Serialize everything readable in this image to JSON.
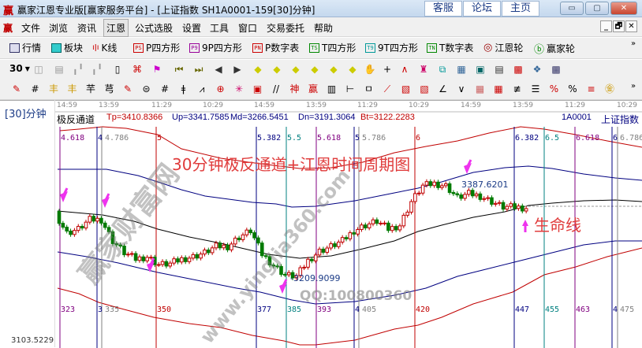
{
  "window": {
    "logo": "赢",
    "title": "赢家江恩专业版[赢家服务平台] - [上证指数  SH1A0001-159[30]分钟]",
    "links": [
      "客服",
      "论坛",
      "主页"
    ],
    "controls": [
      "minimize",
      "maximize",
      "close"
    ]
  },
  "menu": {
    "logo": "赢",
    "items": [
      "文件",
      "浏览",
      "资讯",
      "江恩",
      "公式选股",
      "设置",
      "工具",
      "窗口",
      "交易委托",
      "帮助"
    ],
    "active": "江恩",
    "mdi": [
      "_",
      "🗗",
      "✕"
    ]
  },
  "toolbar1": {
    "items": [
      {
        "label": "行情",
        "icon": "grid-table-icon"
      },
      {
        "label": "板块",
        "icon": "blocks-icon"
      },
      {
        "label": "K线",
        "icon": "candlestick-icon"
      },
      {
        "label": "P四方形",
        "icon": "PS"
      },
      {
        "label": "9P四方形",
        "icon": "P9"
      },
      {
        "label": "P数字表",
        "icon": "PN"
      },
      {
        "label": "T四方形",
        "icon": "TS"
      },
      {
        "label": "9T四方形",
        "icon": "T9"
      },
      {
        "label": "T数字表",
        "icon": "TN"
      },
      {
        "label": "江恩轮",
        "icon": "target-wheel-icon"
      },
      {
        "label": "赢家轮",
        "icon": "big-wheel-icon"
      }
    ],
    "more": "»"
  },
  "toolbar2": {
    "period": "30",
    "more": "»"
  },
  "chart": {
    "period_label": "[30]分钟",
    "low_price": "3103.5229",
    "time_labels": [
      "14:59",
      "13:59",
      "11:29",
      "10:29",
      "14:59",
      "13:59",
      "11:29",
      "10:29",
      "14:59",
      "13:59",
      "11:29",
      "10:29"
    ],
    "indicator": {
      "name": "极反通道",
      "tp": "Tp=3410.8366",
      "up": "Up=3341.7585",
      "md": "Md=3266.5451",
      "dn": "Dn=3191.3064",
      "bt": "Bt=3122.2283"
    },
    "symbol": "1A0001",
    "symbol_name": "上证指数",
    "cycles": [
      {
        "top": "4.618",
        "bottom": "323",
        "color": "#800080"
      },
      {
        "top": "4",
        "bottom": "3",
        "color": "#000080"
      },
      {
        "top": "4.786",
        "bottom": "335",
        "color": "#808080"
      },
      {
        "top": "5",
        "bottom": "350",
        "color": "#c00000"
      },
      {
        "top": "5.382",
        "bottom": "377",
        "color": "#000080"
      },
      {
        "top": "5.5",
        "bottom": "385",
        "color": "#008080"
      },
      {
        "top": "5.618",
        "bottom": "393",
        "color": "#800080"
      },
      {
        "top": "5",
        "bottom": "4",
        "color": "#000080"
      },
      {
        "top": "5.786",
        "bottom": "405",
        "color": "#808080"
      },
      {
        "top": "6",
        "bottom": "420",
        "color": "#c00000"
      },
      {
        "top": "6.382",
        "bottom": "447",
        "color": "#000080"
      },
      {
        "top": "6.5",
        "bottom": "455",
        "color": "#008080"
      },
      {
        "top": "6.618",
        "bottom": "463",
        "color": "#800080"
      },
      {
        "top": "6",
        "bottom": "4",
        "color": "#000080"
      },
      {
        "top": "6.786",
        "bottom": "475",
        "color": "#808080"
      }
    ],
    "closes": [
      3333.4,
      3295.7,
      3303.3,
      3321.3,
      3321.3,
      3280.7,
      3258.1,
      3246.0,
      3250.6,
      3235.5,
      3237.0,
      3246.0,
      3250.6,
      3258.1,
      3270.1,
      3270.1,
      3288.2,
      3300.3,
      3255.1,
      3234.0,
      3215.9,
      3212.9,
      3243.0,
      3261.1,
      3270.1,
      3280.7,
      3300.3,
      3310.8,
      3318.3,
      3303.3,
      3310.8,
      3356.0,
      3386.1,
      3390.6,
      3386.1,
      3363.5,
      3371.0,
      3366.5,
      3356.0,
      3345.4,
      3345.4,
      3343.9
    ],
    "high_mark": "3387.6201",
    "low_mark": "-3209.9099",
    "annotation_title": "30分钟极反通道+江恩时间周期图",
    "annotation_life_line": "生命线",
    "watermarks": [
      "赢家财富网",
      "www.yingjia360.com",
      "QQ:100800360"
    ],
    "colors": {
      "up_candle": "#c00000",
      "down_candle": "#007a00",
      "tp": "#c00000",
      "up": "#000080",
      "md": "#000000",
      "dn": "#000080",
      "bt": "#c00000",
      "arrow": "#ee33ee"
    }
  }
}
